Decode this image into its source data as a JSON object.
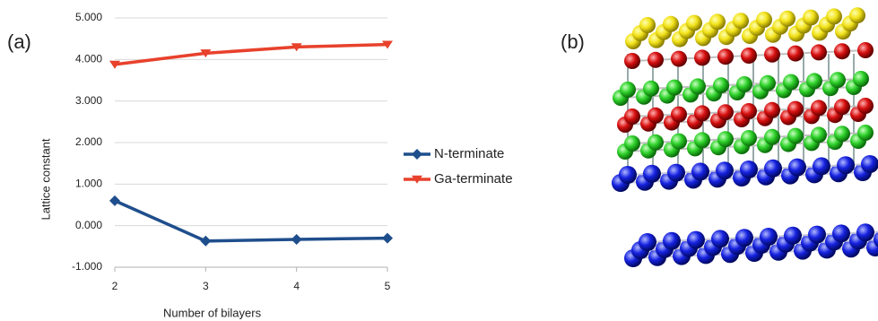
{
  "panel_labels": [
    "(a)",
    "(b)"
  ],
  "chart_data": {
    "type": "line",
    "x": [
      2,
      3,
      4,
      5
    ],
    "x_label": "Number of bilayers",
    "y_label": "Lattice constant",
    "series": [
      {
        "name": "N-terminate",
        "color": "#1f4e8c",
        "marker": "diamond",
        "values": [
          0.6,
          -0.37,
          -0.33,
          -0.3
        ]
      },
      {
        "name": "Ga-terminate",
        "color": "#e8412c",
        "marker": "triangle-down",
        "values": [
          3.88,
          4.15,
          4.3,
          4.36
        ]
      }
    ],
    "xlim": [
      2,
      5
    ],
    "xticks": [
      2,
      3,
      4,
      5
    ],
    "ylim": [
      -1,
      5
    ],
    "yticks": [
      {
        "value": -1,
        "label": "-1.000"
      },
      {
        "value": 0,
        "label": "0.000"
      },
      {
        "value": 1,
        "label": "1.000"
      },
      {
        "value": 2,
        "label": "2.000"
      },
      {
        "value": 3,
        "label": "3.000"
      },
      {
        "value": 4,
        "label": "4.000"
      },
      {
        "value": 5,
        "label": "5.000"
      }
    ],
    "grid": true,
    "legend": "right"
  }
}
